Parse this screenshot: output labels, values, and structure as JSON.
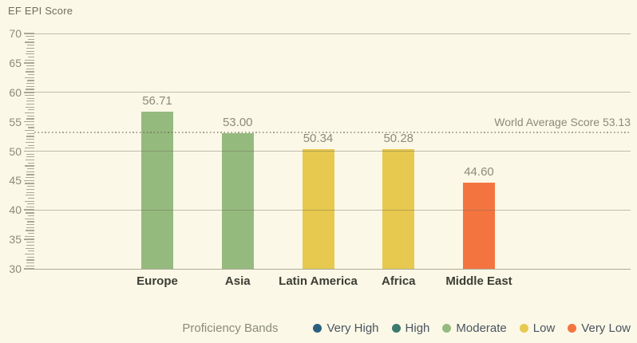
{
  "page": {
    "background": "#FBF8E7"
  },
  "chart_data": {
    "type": "bar",
    "title": "EF EPI Score",
    "categories": [
      "Europe",
      "Asia",
      "Latin America",
      "Africa",
      "Middle East"
    ],
    "values": [
      56.71,
      53.0,
      50.34,
      50.28,
      44.6
    ],
    "value_labels": [
      "56.71",
      "53.00",
      "50.34",
      "50.28",
      "44.60"
    ],
    "bands": [
      "Moderate",
      "Moderate",
      "Low",
      "Low",
      "Very Low"
    ],
    "xlabel": "",
    "ylabel": "EF EPI Score",
    "ylim": [
      30,
      70
    ],
    "y_label_step": 5,
    "grid_step": 10,
    "minor_tick_step": 0.5,
    "grid": "on",
    "world_average": {
      "value": 53.13,
      "label": "World Average Score 53.13"
    },
    "band_colors": {
      "Very High": "#2B5F80",
      "High": "#3B7A6D",
      "Moderate": "#95BA7E",
      "Low": "#E7C94F",
      "Very Low": "#F4743F"
    },
    "legend": {
      "title": "Proficiency Bands",
      "position": "bottom-right",
      "items": [
        {
          "label": "Very High",
          "color": "#2B5F80"
        },
        {
          "label": "High",
          "color": "#3B7A6D"
        },
        {
          "label": "Moderate",
          "color": "#95BA7E"
        },
        {
          "label": "Low",
          "color": "#E7C94F"
        },
        {
          "label": "Very Low",
          "color": "#F4743F"
        }
      ]
    },
    "style": {
      "gridline_color": "rgba(109,106,88,0.42)",
      "baseline_color": "rgba(109,106,88,0.55)",
      "tick_color": "#A9A797",
      "muted_text_color": "#8B8A7C",
      "category_text_color": "#3D3D35",
      "legend_text_color": "#4A5460"
    }
  }
}
